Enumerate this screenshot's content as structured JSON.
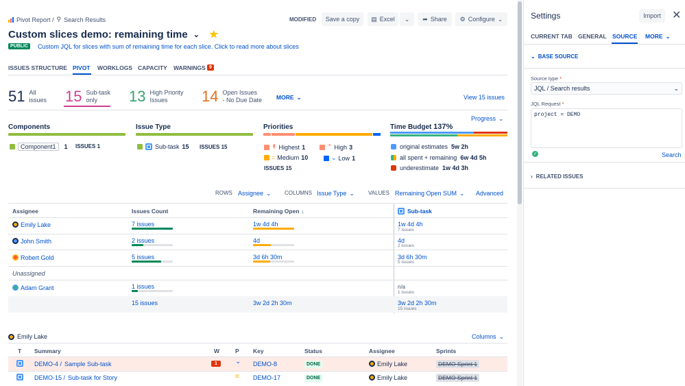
{
  "breadcrumb": {
    "root": "Pivot Report /",
    "current": "Search Results"
  },
  "header": {
    "modified": "MODIFIED",
    "save_copy": "Save a copy",
    "excel": "Excel",
    "share": "Share",
    "configure": "Configure"
  },
  "title": "Custom slices demo: remaining time",
  "public_badge": "PUBLIC",
  "description": "Custom JQL for slices with sum of remaining time for each slice. Click to read more about slices",
  "tabs": [
    "ISSUES STRUCTURE",
    "PIVOT",
    "WORKLOGS",
    "CAPACITY",
    "WARNINGS"
  ],
  "warnings_count": "9",
  "summary": [
    {
      "num": "51",
      "l1": "All",
      "l2": "issues",
      "color": "#172b4d"
    },
    {
      "num": "15",
      "l1": "Sub-task",
      "l2": "only",
      "color": "#cd3f8e"
    },
    {
      "num": "13",
      "l1": "High Priority",
      "l2": "Issues",
      "color": "#36a26e"
    },
    {
      "num": "14",
      "l1": "Open Issues",
      "l2": "- No Due Date",
      "color": "#e2711d"
    }
  ],
  "more": "MORE",
  "view_issues": "View 15 issues",
  "progress": "Progress",
  "components": {
    "title": "Components",
    "item": "Component1",
    "item_count": "1",
    "issues_label": "ISSUES",
    "issues_count": "1"
  },
  "issue_type": {
    "title": "Issue Type",
    "item": "Sub-task",
    "item_count": "15",
    "issues_label": "ISSUES",
    "issues_count": "15"
  },
  "priorities": {
    "title": "Priorities",
    "highest": "Highest",
    "highest_n": "1",
    "high": "High",
    "high_n": "3",
    "medium": "Medium",
    "medium_n": "10",
    "low": "Low",
    "low_n": "1",
    "issues_label": "ISSUES",
    "issues_count": "15"
  },
  "time_budget": {
    "title": "Time Budget",
    "pct": "137%",
    "orig": "original estimates",
    "orig_v": "5w 2h",
    "spent": "all spent + remaining",
    "spent_v": "6w 4d 5h",
    "under": "underestimate",
    "under_v": "1w 4d 3h"
  },
  "controls": {
    "rows": "ROWS",
    "rows_v": "Assignee",
    "cols": "COLUMNS",
    "cols_v": "Issue Type",
    "values": "VALUES",
    "values_v": "Remaining Open SUM",
    "advanced": "Advanced"
  },
  "table": {
    "h_assignee": "Assignee",
    "h_count": "Issues Count",
    "h_remaining": "Remaining Open",
    "h_subtask": "Sub-task",
    "rows": [
      {
        "name": "Emily Lake",
        "count": "7 issues",
        "rem": "1w 4d 4h",
        "sub": "1w 4d 4h",
        "sub_n": "7 issues"
      },
      {
        "name": "John Smith",
        "count": "2 issues",
        "rem": "4d",
        "sub": "4d",
        "sub_n": "2 issues"
      },
      {
        "name": "Robert Gold",
        "count": "5 issues",
        "rem": "3d 6h 30m",
        "sub": "3d 6h 30m",
        "sub_n": "5 issues"
      },
      {
        "name": "Unassigned"
      },
      {
        "name": "Adam Grant",
        "count": "1 issues",
        "rem": "",
        "sub": "n/a",
        "sub_n": "1 issues"
      }
    ],
    "total_count": "15 issues",
    "total_rem": "3w 2d 2h 30m",
    "total_sub": "3w 2d 2h 30m",
    "total_sub_n": "15 issues"
  },
  "detail": {
    "person": "Emily Lake",
    "columns": "Columns",
    "h": {
      "t": "T",
      "summary": "Summary",
      "w": "W",
      "p": "P",
      "key": "Key",
      "status": "Status",
      "assignee": "Assignee",
      "sprints": "Sprints"
    },
    "rows": [
      {
        "summary_a": "DEMO-4 /",
        "summary_b": "Sample Sub-task",
        "w": "1",
        "key": "DEMO-8",
        "status": "DONE",
        "assignee": "Emily Lake",
        "sprint": "DEMO Sprint 1"
      },
      {
        "summary_a": "DEMO-15 /",
        "summary_b": "Sub-task for Story",
        "w": "",
        "key": "DEMO-17",
        "status": "DONE",
        "assignee": "Emily Lake",
        "sprint": "DEMO Sprint 1"
      }
    ]
  },
  "settings": {
    "title": "Settings",
    "import": "Import",
    "tabs": [
      "CURRENT TAB",
      "GENERAL",
      "SOURCE",
      "MORE"
    ],
    "base_source": "BASE SOURCE",
    "source_type_label": "Source type",
    "source_type": "JQL / Search results",
    "jql_label": "JQL Request",
    "jql": "project = DEMO",
    "search": "Search",
    "related": "RELATED ISSUES"
  }
}
